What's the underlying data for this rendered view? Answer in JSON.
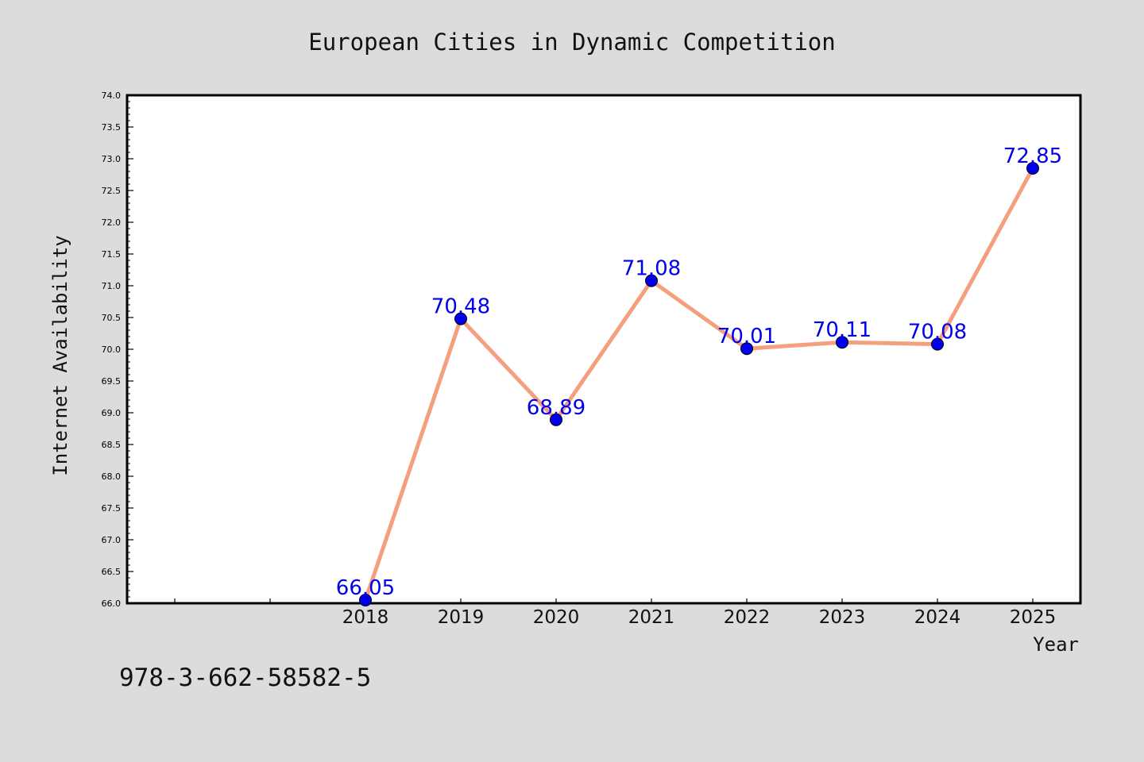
{
  "chart_data": {
    "type": "line",
    "title": "European Cities in Dynamic Competition",
    "xlabel": "Year",
    "ylabel": "Internet Availability",
    "categories": [
      "2018",
      "2019",
      "2020",
      "2021",
      "2022",
      "2023",
      "2024",
      "2025"
    ],
    "series": [
      {
        "values": [
          66.05,
          70.48,
          68.89,
          71.08,
          70.01,
          70.11,
          70.08,
          72.85
        ],
        "data_labels": [
          "66.05",
          "70.48",
          "68.89",
          "71.08",
          "70.01",
          "70.11",
          "70.08",
          "72.85"
        ],
        "line_color": "#f4a07f",
        "marker_color": "#0000ee"
      }
    ],
    "ylim": [
      66.0,
      74.0
    ],
    "yticks": [
      "66.0",
      "66.5",
      "67.0",
      "67.5",
      "68.0",
      "68.5",
      "69.0",
      "69.5",
      "70.0",
      "70.5",
      "71.0",
      "71.5",
      "72.0",
      "72.5",
      "73.0",
      "73.5",
      "74.0"
    ],
    "grid": false,
    "legend": "none",
    "data_label_color": "#0000ee"
  },
  "footer": {
    "isbn": "978-3-662-58582-5"
  },
  "colors": {
    "background": "#dcdcdc",
    "plot_background": "#ffffff",
    "axis": "#000000"
  }
}
